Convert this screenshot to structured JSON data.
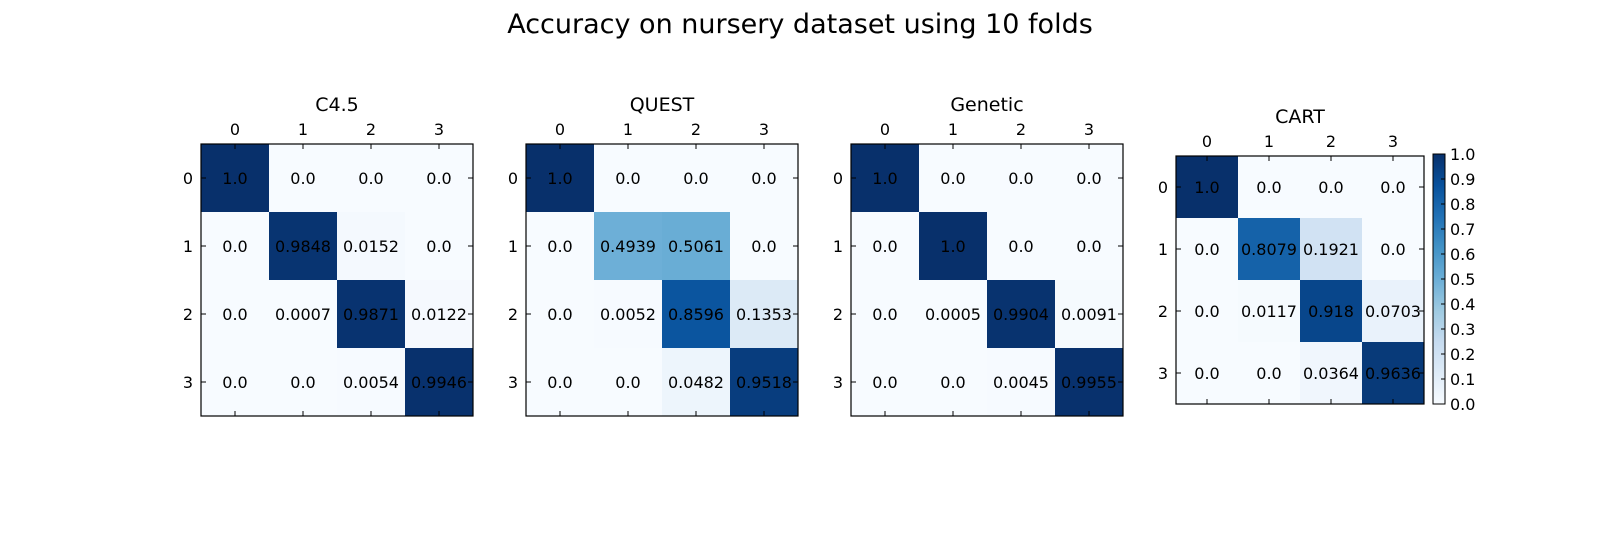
{
  "chart_data": {
    "type": "heatmap",
    "title": "Accuracy on nursery dataset using 10 folds",
    "colormap": "Blues",
    "colormap_stops": [
      "#f7fbff",
      "#deebf7",
      "#c6dbef",
      "#9ecae1",
      "#6baed6",
      "#4292c6",
      "#2171b5",
      "#08519c",
      "#08306b"
    ],
    "value_range": [
      0.0,
      1.0
    ],
    "colorbar_ticks": [
      "0.0",
      "0.1",
      "0.2",
      "0.3",
      "0.4",
      "0.5",
      "0.6",
      "0.7",
      "0.8",
      "0.9",
      "1.0"
    ],
    "row_labels": [
      "0",
      "1",
      "2",
      "3"
    ],
    "col_labels": [
      "0",
      "1",
      "2",
      "3"
    ],
    "panels": [
      {
        "title": "C4.5",
        "values": [
          [
            1.0,
            0.0,
            0.0,
            0.0
          ],
          [
            0.0,
            0.9848,
            0.0152,
            0.0
          ],
          [
            0.0,
            0.0007,
            0.9871,
            0.0122
          ],
          [
            0.0,
            0.0,
            0.0054,
            0.9946
          ]
        ],
        "labels": [
          [
            "1.0",
            "0.0",
            "0.0",
            "0.0"
          ],
          [
            "0.0",
            "0.9848",
            "0.0152",
            "0.0"
          ],
          [
            "0.0",
            "0.0007",
            "0.9871",
            "0.0122"
          ],
          [
            "0.0",
            "0.0",
            "0.0054",
            "0.9946"
          ]
        ]
      },
      {
        "title": "QUEST",
        "values": [
          [
            1.0,
            0.0,
            0.0,
            0.0
          ],
          [
            0.0,
            0.4939,
            0.5061,
            0.0
          ],
          [
            0.0,
            0.0052,
            0.8596,
            0.1353
          ],
          [
            0.0,
            0.0,
            0.0482,
            0.9518
          ]
        ],
        "labels": [
          [
            "1.0",
            "0.0",
            "0.0",
            "0.0"
          ],
          [
            "0.0",
            "0.4939",
            "0.5061",
            "0.0"
          ],
          [
            "0.0",
            "0.0052",
            "0.8596",
            "0.1353"
          ],
          [
            "0.0",
            "0.0",
            "0.0482",
            "0.9518"
          ]
        ]
      },
      {
        "title": "Genetic",
        "values": [
          [
            1.0,
            0.0,
            0.0,
            0.0
          ],
          [
            0.0,
            1.0,
            0.0,
            0.0
          ],
          [
            0.0,
            0.0005,
            0.9904,
            0.0091
          ],
          [
            0.0,
            0.0,
            0.0045,
            0.9955
          ]
        ],
        "labels": [
          [
            "1.0",
            "0.0",
            "0.0",
            "0.0"
          ],
          [
            "0.0",
            "1.0",
            "0.0",
            "0.0"
          ],
          [
            "0.0",
            "0.0005",
            "0.9904",
            "0.0091"
          ],
          [
            "0.0",
            "0.0",
            "0.0045",
            "0.9955"
          ]
        ]
      },
      {
        "title": "CART",
        "values": [
          [
            1.0,
            0.0,
            0.0,
            0.0
          ],
          [
            0.0,
            0.8079,
            0.1921,
            0.0
          ],
          [
            0.0,
            0.0117,
            0.918,
            0.0703
          ],
          [
            0.0,
            0.0,
            0.0364,
            0.9636
          ]
        ],
        "labels": [
          [
            "1.0",
            "0.0",
            "0.0",
            "0.0"
          ],
          [
            "0.0",
            "0.8079",
            "0.1921",
            "0.0"
          ],
          [
            "0.0",
            "0.0117",
            "0.918",
            "0.0703"
          ],
          [
            "0.0",
            "0.0",
            "0.0364",
            "0.9636"
          ]
        ]
      }
    ]
  }
}
